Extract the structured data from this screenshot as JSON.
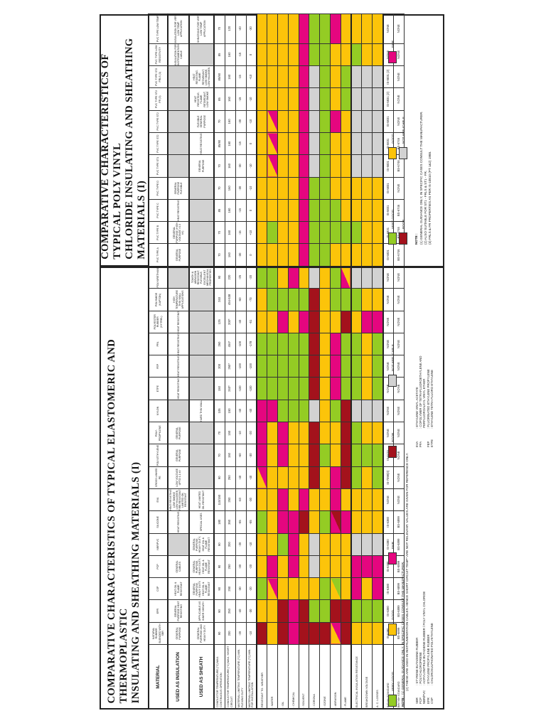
{
  "titles": {
    "left": [
      "COMPARATIVE CHARACTERISTICS OF TYPICAL ELASTOMERIC AND THERMOPLASTIC",
      "INSULATING AND SHEATHING MATERIALS (I)"
    ],
    "right": [
      "COMPARATIVE CHARACTERISTICS OF TYPICAL POLY VINYL",
      "CHLORIDE INSULATING AND SHEATHING MATERIALS (I)"
    ]
  },
  "row_labels": {
    "material": "MATERIAL",
    "insulation": "USED AS INSULATION",
    "sheath": "USED AS SHEATH",
    "numeric": [
      "CONDUCTOR TEMPERATURE (°C) MAX. CONTINUOUS OPERATION",
      "CONDUCTOR TEMPERATURE (°C) MAX. SHORT CIRCUIT",
      "MATERIAL LIMITING TEMPERATURE (°C) MIN. FLEXING DUTY",
      "MATERIAL LIMITING TEMPERATURE (°C) MIN. FOR INSTALLATION"
    ],
    "resistance": [
      "RESISTANT TO : WEATHER",
      ": WATER",
      ": OIL",
      ": CHEMICAL",
      ": SOLVENT",
      ": CORONA",
      ": OZONE",
      ": ABRASION",
      ": FLAME",
      "ELECTRICAL INSULATION RESISTANCE",
      "BREAKDOWN VOLTAGE",
      "A. C. LOSSES"
    ],
    "indian_standard": "INDIAN STANDARD",
    "british_standard": "BRITISH STANDARD"
  },
  "colors": {
    "G": "#94cc24",
    "Y": "#fcc40a",
    "M": "#e5067f",
    "R": "#a3121c",
    "N": "#d2d2d2"
  },
  "columns": [
    {
      "name": "NATURAL RUBBER BLENDED WITH SBR",
      "insulation": "GENERAL PURPOSE",
      "sheath": "GENERAL PURPOSE AND HEAVY DUTY",
      "vals": [
        "90",
        "200",
        "-20",
        "-10"
      ],
      "res": [
        "R",
        "Y",
        "R",
        "M",
        "R",
        "R",
        "R",
        "Y/M",
        "R",
        "Y",
        "Y",
        "Y"
      ],
      "is": "IS-6380",
      "bs": "BS-6899"
    },
    {
      "name": "EPR",
      "insulation": "GENERAL PURPOSE HEAT RESISTING",
      "sheath": "APPLICABLE AS INNER SHEATH",
      "vals": [
        "90",
        "250",
        "-40",
        "-30"
      ],
      "res": [
        "Y",
        "Y",
        "R",
        "M",
        "R",
        "G",
        "G",
        "R",
        "R",
        "G",
        "G",
        "G"
      ],
      "is": "IS-6380",
      "bs": "BS-6899"
    },
    {
      "name": "CSP",
      "insulation": "HEAT OIL & FLAME RESISTANT",
      "sheath": "GENERAL PURPOSE, HEAVY DUTY, HEAT OIL & FLAME RESISTANT",
      "vals": [
        "90",
        "250",
        "-30",
        "-20"
      ],
      "res": [
        "G",
        "Y/M",
        "Y",
        "Y",
        "Y",
        "Y",
        "G",
        "Y/G",
        "Y",
        "M",
        "Y",
        "M"
      ],
      "is": "IS-6380",
      "bs": "BS-6899"
    },
    {
      "name": "PCP",
      "insulation": "GENERAL CABLES",
      "sheath": "GENERAL PURPOSE, HEAVY DUTY, HEAT OIL & FLAME RESISTANT",
      "vals": [
        "90",
        "250",
        "-30",
        "-20"
      ],
      "res": [
        "Y",
        "M",
        "Y",
        "M",
        "Y",
        "N",
        "Y",
        "Y",
        "Y",
        "M",
        "M",
        "M"
      ],
      "is": "IS-6380",
      "bs": "BS-6899"
    },
    {
      "name": "NBR/PVC",
      "insulation": "",
      "sheath": "GENERAL PURPOSE, HEAVY DUTY, HEAT OIL & FLAME RESISTANT",
      "vals": [
        "90",
        "200",
        "-20",
        "-10"
      ],
      "res": [
        "Y",
        "Y",
        "G",
        "M",
        "Y",
        "N",
        "Y",
        "Y",
        "Y",
        "N",
        "N",
        "N"
      ],
      "is": "IS-6380",
      "bs": "BS-6899"
    },
    {
      "name": "SILICONE",
      "insulation": "HEAT RESISTING",
      "sheath": "SPECIAL USES",
      "vals": [
        "180",
        "350",
        "-55",
        "-55"
      ],
      "res": [
        "G",
        "Y",
        "M",
        "M",
        "R",
        "Y",
        "G",
        "M/R",
        "M",
        "Y",
        "Y",
        "Y"
      ],
      "is": "IS-6380",
      "bs": "BS-6899"
    },
    {
      "name": "EVA",
      "insulation": "HEAT RESISTING LOW SMOKE LOW HALOGEN FIRE RESISTANT LIMITED OIL RESISTANT",
      "sheath": "HEAT LIMITED OIL RESISTANT",
      "vals": [
        "110/150",
        "250",
        "-40",
        "-30"
      ],
      "res": [
        "Y",
        "Y",
        "M",
        "Y",
        "M",
        "Y",
        "Y",
        "M",
        "Y",
        "Y",
        "Y",
        "Y"
      ],
      "is": "NONE",
      "bs": "NONE"
    },
    {
      "name": "CROSS LINKED PE",
      "insulation": "LOW VOLTAGE UPTO 1.1 kV",
      "sheath": "",
      "vals": [
        "90",
        "250",
        "-40",
        "-40"
      ],
      "res": [
        "Y/M",
        "Y",
        "Y",
        "Y",
        "Y",
        "R",
        "Y",
        "M",
        "R",
        "G",
        "Y",
        "G"
      ],
      "is": "IS-7098(II)",
      "bs": "NONE"
    },
    {
      "name": "POLY-ETHYLENE",
      "insulation": "GENERAL PURPOSE",
      "sheath": "",
      "vals": [
        "70",
        "150",
        "-60",
        "-30"
      ],
      "res": [
        "M",
        "Y",
        "M",
        "Y",
        "Y",
        "R",
        "G",
        "Y",
        "R",
        "G",
        "G",
        "G"
      ],
      "is": "IS-6474",
      "bs": "NONE"
    },
    {
      "name": "POLY-PROPYLENE",
      "insulation": "GENERAL PURPOSE",
      "sheath": "",
      "vals": [
        "70",
        "150",
        "-10",
        "-20"
      ],
      "res": [
        "M",
        "Y",
        "M",
        "Y",
        "Y",
        "R",
        "Y",
        "Y",
        "R",
        "G",
        "Y",
        "Y"
      ],
      "is": "NONE",
      "bs": "NONE"
    },
    {
      "name": "NYLON",
      "insulation": "",
      "sheath": "HARD THIN WALL",
      "vals": [
        "105",
        "150",
        "-40",
        "-40"
      ],
      "res": [
        "M",
        "M",
        "G",
        "G",
        "G",
        "N",
        "Y",
        "G",
        "R",
        "N",
        "N",
        "N"
      ],
      "is": "NONE",
      "bs": "NONE"
    },
    {
      "name": "ETFE",
      "insulation": "HEAT RESISTING",
      "sheath": "",
      "vals": [
        "150",
        "240*",
        "-100",
        "-100"
      ],
      "res": [
        "G",
        "G",
        "G",
        "G",
        "G",
        "R",
        "Y",
        "M",
        "G",
        "G",
        "Y",
        "G"
      ],
      "is": "NONE",
      "bs": "NONE"
    },
    {
      "name": "FEP",
      "insulation": "HEAT RESISTING",
      "sheath": "",
      "vals": [
        "200",
        "260*",
        "-100",
        "-100"
      ],
      "res": [
        "G",
        "G",
        "G",
        "G",
        "G",
        "R",
        "Y",
        "M",
        "G",
        "G",
        "Y",
        "G"
      ],
      "is": "NONE",
      "bs": "NONE"
    },
    {
      "name": "PFA",
      "insulation": "HEAT RESISTING",
      "sheath": "",
      "vals": [
        "260",
        "454*",
        "-100",
        "-178"
      ],
      "res": [
        "G",
        "G",
        "G",
        "G",
        "G",
        "R",
        "Y",
        "M",
        "G",
        "G",
        "Y",
        "G"
      ],
      "is": "NONE",
      "bs": "NONE"
    },
    {
      "name": "POLYESTER RUBBER (HYTREL)",
      "insulation": "HEAT RESISTING",
      "sheath": "",
      "vals": [
        "125",
        "200*",
        "-40",
        "-51"
      ],
      "res": [
        "Y",
        "Y",
        "M",
        "Y",
        "M",
        "R",
        "Y",
        "Y",
        "R",
        "Y",
        "M",
        "M"
      ],
      "is": "NONE",
      "bs": "NONE"
    },
    {
      "name": "POLYIMIDE (KAPTON)",
      "insulation": "HIGH TEMPERATURE THIN WALL APPLICATIONS",
      "sheath": "",
      "vals": [
        "240",
        "454-538",
        "-60",
        "-73"
      ],
      "res": [
        "Y",
        "G",
        "G",
        "G",
        "G",
        "R",
        "Y",
        "G",
        "G",
        "G",
        "Y",
        "Y"
      ],
      "is": "NONE",
      "bs": "NONE"
    },
    {
      "name": "POLYURETHANE",
      "insulation": "",
      "sheath": "TOUGH & ABRASION RESISTANT, FLEXIBLE, EXCELLENT MECHANICAL PROPERTIES",
      "vals": [
        "90",
        "220",
        "-25",
        "-20"
      ],
      "res": [
        "G",
        "G",
        "Y",
        "M",
        "Y",
        "N",
        "Y",
        "G",
        "M/Y",
        "N",
        "N",
        "N"
      ],
      "is": "NONE",
      "bs": "NONE"
    },
    {
      "name": "PVC TYPE A",
      "insulation": "GENERAL PURPOSE",
      "sheath": "",
      "vals": [
        "70",
        "160",
        "-30",
        "0"
      ],
      "res": [
        "Y",
        "Y",
        "Y",
        "Y",
        "M",
        "G",
        "G",
        "Y",
        "Y",
        "Y",
        "Y",
        "Y"
      ],
      "is": "IS-5831",
      "bs": "BS-6746"
    },
    {
      "name": "PVC TYPE B",
      "insulation": "GENERAL PURPOSE (HIGH VOLTAGE >3.3 kV)",
      "sheath": "",
      "vals": [
        "70",
        "160",
        "-15",
        "+10"
      ],
      "res": [
        "Y",
        "G",
        "Y",
        "Y",
        "M",
        "G",
        "G",
        "G",
        "G",
        "G",
        "Y",
        "Y"
      ],
      "is": "IS-5831",
      "bs": "BS-6746"
    },
    {
      "name": "PVC TYPE C",
      "insulation": "HEAT RESISTING",
      "sheath": "",
      "vals": [
        "85",
        "160",
        "-15",
        "0"
      ],
      "res": [
        "Y",
        "Y",
        "Y",
        "Y",
        "M",
        "G",
        "G",
        "G",
        "Y",
        "Y",
        "Y",
        "Y"
      ],
      "is": "IS-5831",
      "bs": "BS-6746"
    },
    {
      "name": "PVC TYPE D",
      "insulation": "GENERAL PURPOSE FLEXIBLE",
      "sheath": "",
      "vals": [
        "70",
        "160",
        "-30",
        "-10"
      ],
      "res": [
        "Y",
        "Y",
        "Y",
        "Y",
        "M",
        "G",
        "G",
        "Y",
        "Y",
        "Y",
        "Y",
        "Y"
      ],
      "is": "IS-5831",
      "bs": "NONE"
    },
    {
      "name": "PVC TYPE ST1",
      "insulation": "",
      "sheath": "GENERAL PURPOSE",
      "vals": [
        "70",
        "160",
        "-30",
        "-10"
      ],
      "res": [
        "Y",
        "Y/M",
        "Y",
        "Y",
        "M",
        "N",
        "G",
        "Y",
        "Y",
        "N",
        "N",
        "N"
      ],
      "is": "IS-5831",
      "bs": "BS-6746"
    },
    {
      "name": "PVC TYPE ST2",
      "insulation": "",
      "sheath": "HEAT RESISTING",
      "vals": [
        "85/90",
        "160",
        "-15",
        "0"
      ],
      "res": [
        "Y",
        "Y/M",
        "Y",
        "Y",
        "M",
        "N",
        "G",
        "Y",
        "Y",
        "N",
        "N",
        "N"
      ],
      "is": "IS-5831",
      "bs": "BS-6746"
    },
    {
      "name": "PVC TYPE ST2",
      "insulation": "",
      "sheath": "FLEXIBLE GENERAL PURPOSE",
      "vals": [
        "70",
        "160",
        "-30",
        "-10"
      ],
      "res": [
        "Y",
        "Y/M",
        "Y",
        "Y",
        "M",
        "N",
        "G",
        "M",
        "Y",
        "N",
        "N",
        "N"
      ],
      "is": "IS-5831",
      "bs": "NONE"
    },
    {
      "name": "PVC TYPE ST2 FR (3)",
      "insulation": "",
      "sheath": "HEAT RESISTING, FLAME RETARDANT, LOW SMOKE",
      "vals": [
        "85",
        "160",
        "-15",
        "-10"
      ],
      "res": [
        "Y",
        "Y",
        "Y",
        "Y",
        "M",
        "N",
        "G",
        "Y",
        "G",
        "N",
        "N",
        "N"
      ],
      "is": "IS-5831 (2)",
      "bs": "NONE"
    },
    {
      "name": "PVC TYPE ST2 FRLS (3)",
      "insulation": "",
      "sheath": "HEAT RESISTING, FLAME RETARDANT, LOW SMOKE, LOW HALOGEN",
      "vals": [
        "85/90",
        "160",
        "-15",
        "+10"
      ],
      "res": [
        "Y",
        "Y",
        "Y",
        "Y",
        "M",
        "N",
        "G",
        "Y",
        "G",
        "N",
        "N",
        "N"
      ],
      "is": "IS-5831 (2)",
      "bs": "NONE"
    },
    {
      "name": "PVC TYPE LOW RESISTIVITY",
      "insulation": "INSULATION FOR INSTRUMENTATION CABLE",
      "sheath": "",
      "vals": [
        "85",
        "160",
        "-15",
        "0"
      ],
      "res": [
        "Y",
        "Y",
        "Y",
        "Y",
        "M",
        "G",
        "G",
        "Y",
        "Y",
        "G",
        "Y",
        "Y"
      ],
      "is": "NONE",
      "bs": "NONE"
    },
    {
      "name": "PVC TYPE LOW TEMP",
      "insulation": "INSULATION FOR VERY LOW TEMP APPLICATION",
      "sheath": "SHEATHING FOR VERY LOW TEMP APPLICATION",
      "vals": [
        "70",
        "120",
        "-40",
        "-30"
      ],
      "res": [
        "Y",
        "Y",
        "Y",
        "Y",
        "M",
        "G",
        "G",
        "M",
        "Y",
        "Y",
        "Y",
        "Y"
      ],
      "is": "NONE",
      "bs": "NONE"
    }
  ],
  "legend": {
    "very_good": "VERY GOOD",
    "good": "GOOD",
    "fair": "FAIR",
    "poor": "POOR",
    "not_applicable": "NOT APPLICABLE"
  },
  "left_notes": {
    "label": "NOTE :",
    "n1": "(1) GENERAL GUIDANCE ONLY, IN SPECIFIC CASES CONSULT THE MANUFACTURER.",
    "n2": "(2) THESE ARE USED IN INSTRUMENTATION CABLES. HENCE SHORT CIRCUIT TEMP* ARE NOT RELEVANT. VALUES ARE GIVEN FOR REFERENCE ONLY."
  },
  "abbreviations": [
    {
      "k": "SBR",
      "v": "STYRENE BUTADIENE RUBBER"
    },
    {
      "k": "PCP",
      "v": "POLYCHLOROPRENE"
    },
    {
      "k": "NBR/PVC",
      "v": "ACRYLONITRILE BUTADIENE RUBBER / POLY VINYL CHLORIDE"
    },
    {
      "k": "EPR",
      "v": "ETHYLENE PROPYLENE RUBBER"
    },
    {
      "k": "CSP",
      "v": "CHLOROSULPHONATED POLYETHYLENE"
    },
    {
      "k": "EVA",
      "v": "ETHYLENE VINYL ACETATE"
    },
    {
      "k": "PFA",
      "v": "COPOLYMER OF TETRAFLUOROETHYLENE AND"
    },
    {
      "k": "",
      "v": "PERFLUOROALKYL VINYL ETHER"
    },
    {
      "k": "FEP",
      "v": "FLUORINATED ETHYLENE PROPYLENE"
    },
    {
      "k": "ETFE",
      "v": "ETHYLENE TETRA FLUORO ETHYLENE"
    }
  ],
  "right_notes": {
    "label": "NOTE :",
    "n1": "(1) GENERAL GUIDANCE ONLY, IN SPECIFIC CASES CONSULT THE MANUFACTURER.",
    "n2": "(2) ALSO SUITABLE FOR ST1 - FRLS & ST1 - FR.",
    "n3": "(3) FRLS & FR PROPERTIES AS PER IS-10810 (PT 1&2) 1988."
  }
}
